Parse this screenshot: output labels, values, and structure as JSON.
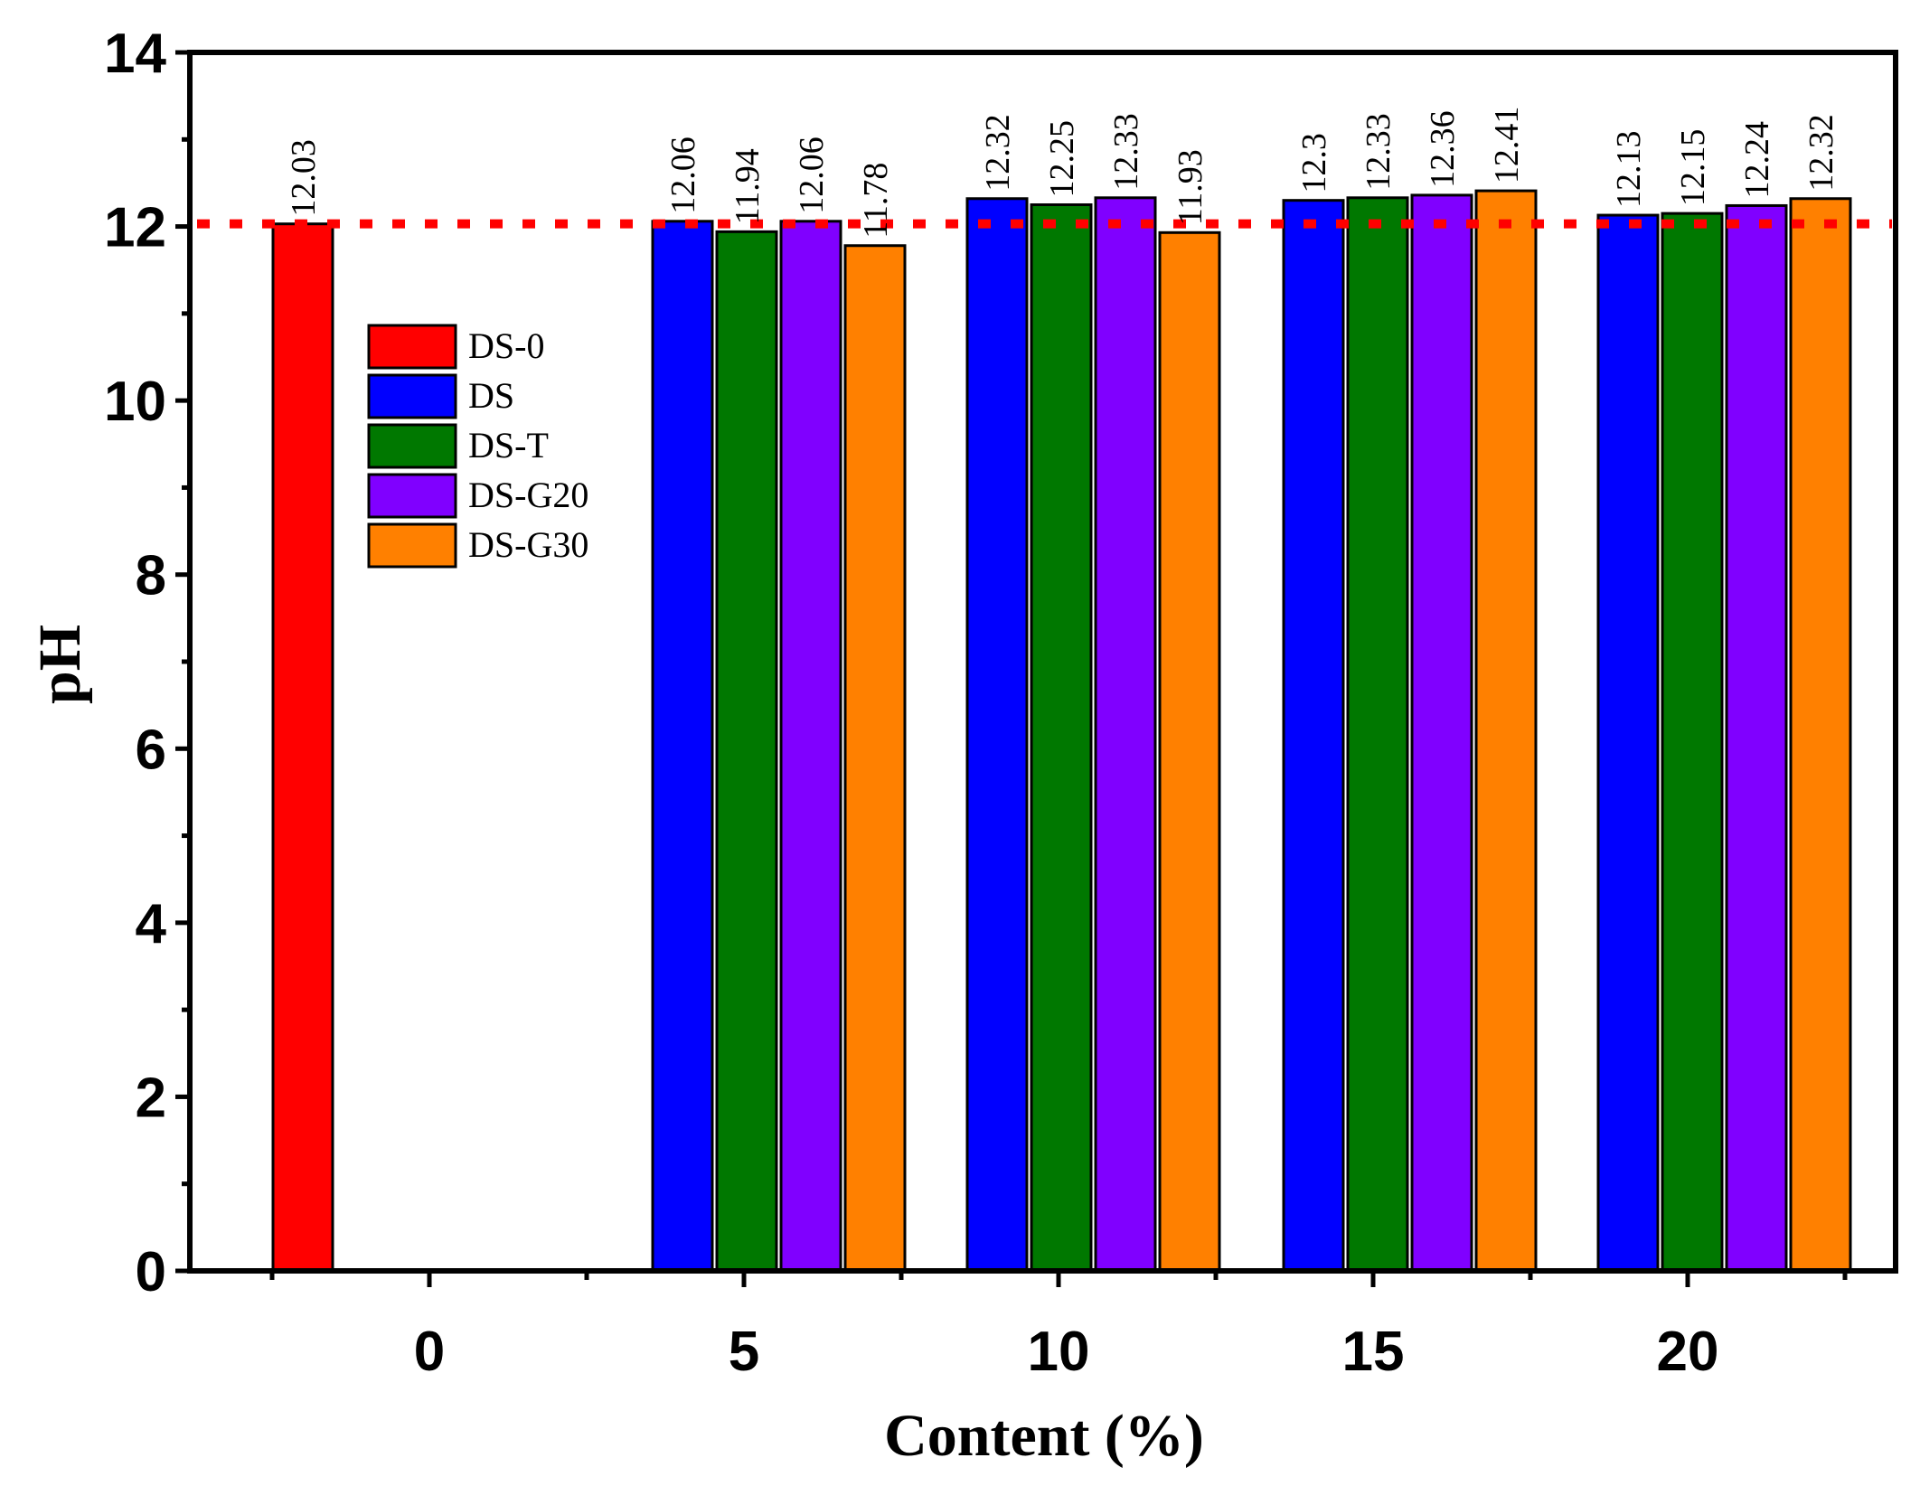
{
  "chart_data": {
    "type": "bar",
    "title": "",
    "xlabel": "Content (%)",
    "ylabel": "pH",
    "ylim": [
      0,
      14
    ],
    "y_ticks": [
      "0",
      "2",
      "4",
      "6",
      "8",
      "10",
      "12",
      "14"
    ],
    "categories": [
      "0",
      "5",
      "10",
      "15",
      "20"
    ],
    "series": [
      {
        "name": "DS-0",
        "color": "#ff0000",
        "values": [
          12.03,
          null,
          null,
          null,
          null
        ],
        "labels": [
          "12.03",
          null,
          null,
          null,
          null
        ]
      },
      {
        "name": "DS",
        "color": "#0000ff",
        "values": [
          null,
          12.06,
          12.32,
          12.3,
          12.13
        ],
        "labels": [
          null,
          "12.06",
          "12.32",
          "12.3",
          "12.13"
        ]
      },
      {
        "name": "DS-T",
        "color": "#007800",
        "values": [
          null,
          11.94,
          12.25,
          12.33,
          12.15
        ],
        "labels": [
          null,
          "11.94",
          "12.25",
          "12.33",
          "12.15"
        ]
      },
      {
        "name": "DS-G20",
        "color": "#8000ff",
        "values": [
          null,
          12.06,
          12.33,
          12.36,
          12.24
        ],
        "labels": [
          null,
          "12.06",
          "12.33",
          "12.36",
          "12.24"
        ]
      },
      {
        "name": "DS-G30",
        "color": "#ff8000",
        "values": [
          null,
          11.78,
          11.93,
          12.41,
          12.32
        ],
        "labels": [
          null,
          "11.78",
          "11.93",
          "12.41",
          "12.32"
        ]
      }
    ],
    "reference_line": {
      "value": 12.03,
      "color": "#ff0000",
      "style": "dotted"
    },
    "legend": {
      "placement": "upper-left inside plot"
    },
    "grid": false
  }
}
